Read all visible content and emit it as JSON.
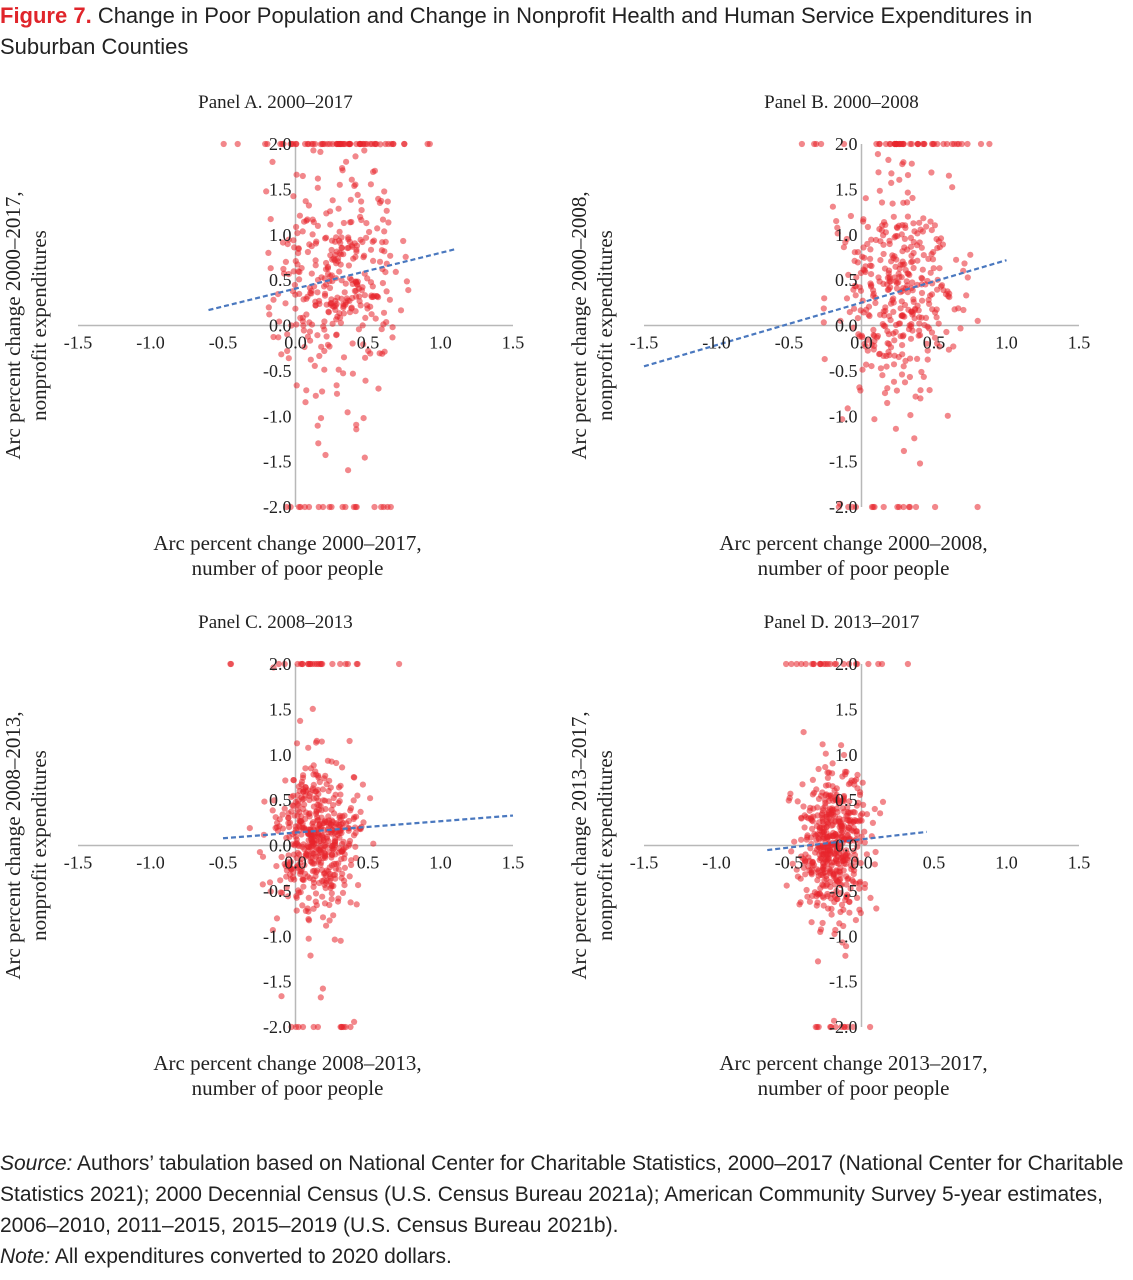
{
  "figure": {
    "label": "Figure 7.",
    "title": "Change in Poor Population and Change in Nonprofit Health and Human Service Expenditures in Suburban Counties"
  },
  "colors": {
    "points": "#e8242c",
    "trend": "#4a78bf",
    "axis": "#b8b8b8"
  },
  "chart_data": [
    {
      "type": "scatter",
      "title": "Panel A. 2000–2017",
      "xlabel_lines": [
        "Arc percent change 2000–2017,",
        "number of poor people"
      ],
      "ylabel_lines": [
        "Arc percent change 2000–2017,",
        "nonprofit expenditures"
      ],
      "xlim": [
        -1.5,
        1.5
      ],
      "ylim": [
        -2.0,
        2.0
      ],
      "x_ticks": [
        "-1.5",
        "-1.0",
        "-0.5",
        "0.0",
        "0.5",
        "1.0",
        "1.5"
      ],
      "y_ticks": [
        "2.0",
        "1.5",
        "1.0",
        "0.5",
        "0.0",
        "-0.5",
        "-1.0",
        "-1.5",
        "-2.0"
      ],
      "grid": false,
      "trendline": {
        "x": [
          -0.6,
          1.1
        ],
        "y": [
          0.17,
          0.84
        ]
      },
      "cloud": {
        "cx": 0.3,
        "sx": 0.22,
        "cy": 0.55,
        "sy": 0.55,
        "n": 360,
        "cap_top": 55,
        "cap_bottom": 18,
        "xmin": -0.55,
        "xmax": 1.05,
        "seed": 11
      }
    },
    {
      "type": "scatter",
      "title": "Panel B. 2000–2008",
      "xlabel_lines": [
        "Arc percent change 2000–2008,",
        "number of poor people"
      ],
      "ylabel_lines": [
        "Arc percent change 2000–2008,",
        "nonprofit expenditures"
      ],
      "xlim": [
        -1.5,
        1.5
      ],
      "ylim": [
        -2.0,
        2.0
      ],
      "x_ticks": [
        "-1.5",
        "-1.0",
        "-0.5",
        "0.0",
        "0.5",
        "1.0",
        "1.5"
      ],
      "y_ticks": [
        "2.0",
        "1.5",
        "1.0",
        "0.5",
        "0.0",
        "-0.5",
        "-1.0",
        "-1.5",
        "-2.0"
      ],
      "grid": false,
      "trendline": {
        "x": [
          -1.5,
          1.0
        ],
        "y": [
          -0.45,
          0.72
        ]
      },
      "cloud": {
        "cx": 0.25,
        "sx": 0.2,
        "cy": 0.35,
        "sy": 0.55,
        "n": 380,
        "cap_top": 45,
        "cap_bottom": 16,
        "xmin": -0.45,
        "xmax": 1.0,
        "seed": 23
      }
    },
    {
      "type": "scatter",
      "title": "Panel C. 2008–2013",
      "xlabel_lines": [
        "Arc percent change 2008–2013,",
        "number of poor people"
      ],
      "ylabel_lines": [
        "Arc percent change 2008–2013,",
        "nonprofit expenditures"
      ],
      "xlim": [
        -1.5,
        1.5
      ],
      "ylim": [
        -2.0,
        2.0
      ],
      "x_ticks": [
        "-1.5",
        "-1.0",
        "-0.5",
        "0.0",
        "0.5",
        "1.0",
        "1.5"
      ],
      "y_ticks": [
        "2.0",
        "1.5",
        "1.0",
        "0.5",
        "0.0",
        "-0.5",
        "-1.0",
        "-1.5",
        "-2.0"
      ],
      "grid": false,
      "trendline": {
        "x": [
          -0.5,
          1.5
        ],
        "y": [
          0.08,
          0.33
        ]
      },
      "cloud": {
        "cx": 0.15,
        "sx": 0.15,
        "cy": 0.05,
        "sy": 0.35,
        "n": 500,
        "cap_top": 25,
        "cap_bottom": 12,
        "xmin": -0.55,
        "xmax": 0.75,
        "seed": 37
      }
    },
    {
      "type": "scatter",
      "title": "Panel D. 2013–2017",
      "xlabel_lines": [
        "Arc percent change 2013–2017,",
        "number of poor people"
      ],
      "ylabel_lines": [
        "Arc percent change 2013–2017,",
        "nonprofit expenditures"
      ],
      "xlim": [
        -1.5,
        1.5
      ],
      "ylim": [
        -2.0,
        2.0
      ],
      "x_ticks": [
        "-1.5",
        "-1.0",
        "-0.5",
        "0.0",
        "0.5",
        "1.0",
        "1.5"
      ],
      "y_ticks": [
        "2.0",
        "1.5",
        "1.0",
        "0.5",
        "0.0",
        "-0.5",
        "-1.0",
        "-1.5",
        "-2.0"
      ],
      "grid": false,
      "trendline": {
        "x": [
          -0.65,
          0.45
        ],
        "y": [
          -0.05,
          0.15
        ]
      },
      "cloud": {
        "cx": -0.2,
        "sx": 0.12,
        "cy": 0.0,
        "sy": 0.4,
        "n": 500,
        "cap_top": 22,
        "cap_bottom": 10,
        "xmin": -0.65,
        "xmax": 0.45,
        "seed": 53
      }
    }
  ],
  "source": {
    "source_label": "Source:",
    "source_text": " Authors’ tabulation based on National Center for Charitable Statistics, 2000–2017 (National Center for Charitable Statistics 2021); 2000 Decennial Census (U.S. Census Bureau 2021a); American Community Survey 5-year estimates, 2006–2010, 2011–2015, 2015–2019 (U.S. Census Bureau 2021b).",
    "note_label": "Note:",
    "note_text": " All expenditures converted to 2020 dollars."
  }
}
